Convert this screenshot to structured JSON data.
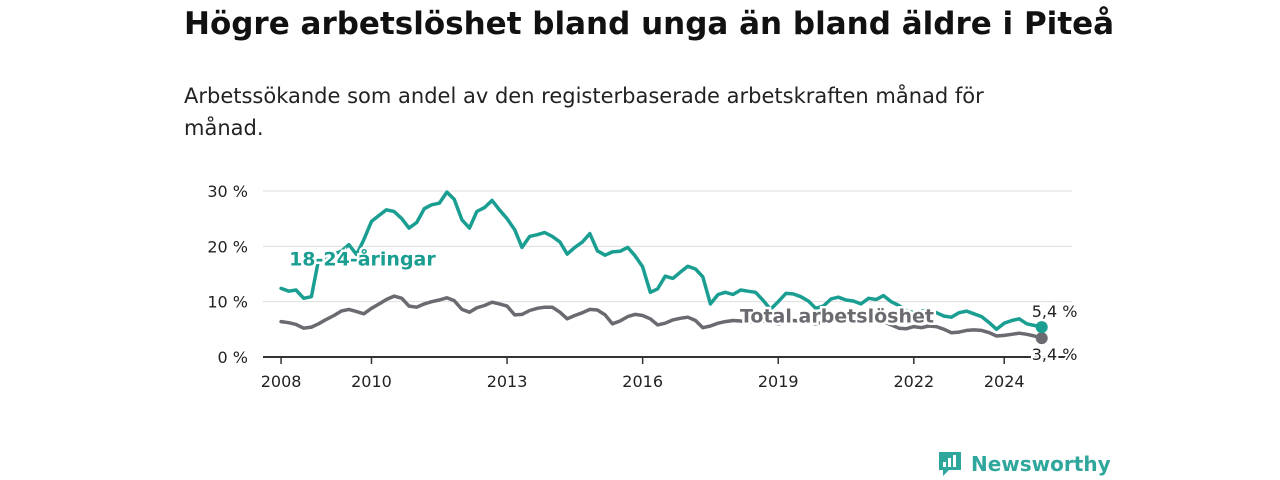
{
  "title": "Högre arbetslöshet bland unga än bland äldre i Piteå",
  "subtitle": "Arbetssökande som andel av den registerbaserade arbetskraften månad för månad.",
  "brand": {
    "name": "Newsworthy",
    "icon": "newsworthy-logo-icon"
  },
  "colors": {
    "youth": "#1a9e92",
    "total": "#6a6a70",
    "grid": "#dddddd",
    "axis": "#333333"
  },
  "chart_data": {
    "type": "line",
    "title": "Högre arbetslöshet bland unga än bland äldre i Piteå",
    "xlabel": "",
    "ylabel": "",
    "xlim": [
      2007.6,
      2025.5
    ],
    "ylim": [
      0,
      30
    ],
    "grid": true,
    "x_ticks": [
      {
        "value": 2008,
        "label": "2008"
      },
      {
        "value": 2010,
        "label": "2010"
      },
      {
        "value": 2013,
        "label": "2013"
      },
      {
        "value": 2016,
        "label": "2016"
      },
      {
        "value": 2019,
        "label": "2019"
      },
      {
        "value": 2022,
        "label": "2022"
      },
      {
        "value": 2024,
        "label": "2024"
      }
    ],
    "y_ticks": [
      {
        "value": 0,
        "label": "0 %"
      },
      {
        "value": 10,
        "label": "10 %"
      },
      {
        "value": 20,
        "label": "20 %"
      },
      {
        "value": 30,
        "label": "30 %"
      }
    ],
    "series": [
      {
        "name": "18-24-åringar",
        "key": "youth",
        "end_label": "5,4 %",
        "points": [
          [
            2008.0,
            12.4
          ],
          [
            2008.17,
            11.9
          ],
          [
            2008.33,
            12.1
          ],
          [
            2008.5,
            10.6
          ],
          [
            2008.67,
            10.9
          ],
          [
            2008.83,
            17.6
          ],
          [
            2009.0,
            18.0
          ],
          [
            2009.17,
            18.6
          ],
          [
            2009.33,
            19.1
          ],
          [
            2009.5,
            20.3
          ],
          [
            2009.67,
            18.5
          ],
          [
            2009.83,
            21.2
          ],
          [
            2010.0,
            24.5
          ],
          [
            2010.17,
            25.6
          ],
          [
            2010.33,
            26.6
          ],
          [
            2010.5,
            26.3
          ],
          [
            2010.67,
            25.0
          ],
          [
            2010.83,
            23.3
          ],
          [
            2011.0,
            24.3
          ],
          [
            2011.17,
            26.8
          ],
          [
            2011.33,
            27.5
          ],
          [
            2011.5,
            27.8
          ],
          [
            2011.67,
            29.8
          ],
          [
            2011.83,
            28.5
          ],
          [
            2012.0,
            24.8
          ],
          [
            2012.17,
            23.3
          ],
          [
            2012.33,
            26.3
          ],
          [
            2012.5,
            27.0
          ],
          [
            2012.67,
            28.3
          ],
          [
            2012.83,
            26.6
          ],
          [
            2013.0,
            25.0
          ],
          [
            2013.17,
            23.0
          ],
          [
            2013.33,
            19.8
          ],
          [
            2013.5,
            21.8
          ],
          [
            2013.67,
            22.1
          ],
          [
            2013.83,
            22.5
          ],
          [
            2014.0,
            21.8
          ],
          [
            2014.17,
            20.8
          ],
          [
            2014.33,
            18.6
          ],
          [
            2014.5,
            19.8
          ],
          [
            2014.67,
            20.8
          ],
          [
            2014.83,
            22.3
          ],
          [
            2015.0,
            19.2
          ],
          [
            2015.17,
            18.4
          ],
          [
            2015.33,
            19.0
          ],
          [
            2015.5,
            19.1
          ],
          [
            2015.67,
            19.8
          ],
          [
            2015.83,
            18.3
          ],
          [
            2016.0,
            16.3
          ],
          [
            2016.17,
            11.7
          ],
          [
            2016.33,
            12.3
          ],
          [
            2016.5,
            14.6
          ],
          [
            2016.67,
            14.2
          ],
          [
            2016.83,
            15.3
          ],
          [
            2017.0,
            16.4
          ],
          [
            2017.17,
            15.9
          ],
          [
            2017.33,
            14.5
          ],
          [
            2017.5,
            9.6
          ],
          [
            2017.67,
            11.3
          ],
          [
            2017.83,
            11.7
          ],
          [
            2018.0,
            11.3
          ],
          [
            2018.17,
            12.1
          ],
          [
            2018.33,
            11.9
          ],
          [
            2018.5,
            11.7
          ],
          [
            2018.67,
            10.2
          ],
          [
            2018.83,
            8.6
          ],
          [
            2019.0,
            10.0
          ],
          [
            2019.17,
            11.5
          ],
          [
            2019.33,
            11.4
          ],
          [
            2019.5,
            10.9
          ],
          [
            2019.67,
            10.1
          ],
          [
            2019.83,
            8.8
          ],
          [
            2020.0,
            9.2
          ],
          [
            2020.17,
            10.5
          ],
          [
            2020.33,
            10.8
          ],
          [
            2020.5,
            10.3
          ],
          [
            2020.67,
            10.1
          ],
          [
            2020.83,
            9.6
          ],
          [
            2021.0,
            10.6
          ],
          [
            2021.17,
            10.4
          ],
          [
            2021.33,
            11.1
          ],
          [
            2021.5,
            10.0
          ],
          [
            2021.67,
            9.3
          ],
          [
            2021.83,
            8.4
          ],
          [
            2022.0,
            8.0
          ],
          [
            2022.17,
            8.3
          ],
          [
            2022.33,
            8.6
          ],
          [
            2022.5,
            8.0
          ],
          [
            2022.67,
            7.4
          ],
          [
            2022.83,
            7.2
          ],
          [
            2023.0,
            8.0
          ],
          [
            2023.17,
            8.3
          ],
          [
            2023.33,
            7.8
          ],
          [
            2023.5,
            7.3
          ],
          [
            2023.67,
            6.2
          ],
          [
            2023.83,
            5.0
          ],
          [
            2024.0,
            6.1
          ],
          [
            2024.17,
            6.6
          ],
          [
            2024.33,
            6.9
          ],
          [
            2024.5,
            6.0
          ],
          [
            2024.67,
            5.7
          ],
          [
            2024.83,
            5.4
          ]
        ]
      },
      {
        "name": "Total arbetslöshet",
        "key": "total",
        "end_label": "3,4 %",
        "points": [
          [
            2008.0,
            6.4
          ],
          [
            2008.17,
            6.2
          ],
          [
            2008.33,
            5.9
          ],
          [
            2008.5,
            5.2
          ],
          [
            2008.67,
            5.4
          ],
          [
            2008.83,
            6.0
          ],
          [
            2009.0,
            6.8
          ],
          [
            2009.17,
            7.5
          ],
          [
            2009.33,
            8.3
          ],
          [
            2009.5,
            8.6
          ],
          [
            2009.67,
            8.2
          ],
          [
            2009.83,
            7.8
          ],
          [
            2010.0,
            8.8
          ],
          [
            2010.17,
            9.6
          ],
          [
            2010.33,
            10.4
          ],
          [
            2010.5,
            11.0
          ],
          [
            2010.67,
            10.6
          ],
          [
            2010.83,
            9.2
          ],
          [
            2011.0,
            9.0
          ],
          [
            2011.17,
            9.6
          ],
          [
            2011.33,
            10.0
          ],
          [
            2011.5,
            10.3
          ],
          [
            2011.67,
            10.7
          ],
          [
            2011.83,
            10.2
          ],
          [
            2012.0,
            8.6
          ],
          [
            2012.17,
            8.1
          ],
          [
            2012.33,
            8.9
          ],
          [
            2012.5,
            9.3
          ],
          [
            2012.67,
            9.9
          ],
          [
            2012.83,
            9.6
          ],
          [
            2013.0,
            9.2
          ],
          [
            2013.17,
            7.6
          ],
          [
            2013.33,
            7.7
          ],
          [
            2013.5,
            8.4
          ],
          [
            2013.67,
            8.8
          ],
          [
            2013.83,
            9.0
          ],
          [
            2014.0,
            9.0
          ],
          [
            2014.17,
            8.1
          ],
          [
            2014.33,
            6.9
          ],
          [
            2014.5,
            7.5
          ],
          [
            2014.67,
            8.0
          ],
          [
            2014.83,
            8.6
          ],
          [
            2015.0,
            8.5
          ],
          [
            2015.17,
            7.6
          ],
          [
            2015.33,
            6.0
          ],
          [
            2015.5,
            6.5
          ],
          [
            2015.67,
            7.3
          ],
          [
            2015.83,
            7.7
          ],
          [
            2016.0,
            7.5
          ],
          [
            2016.17,
            6.9
          ],
          [
            2016.33,
            5.8
          ],
          [
            2016.5,
            6.1
          ],
          [
            2016.67,
            6.7
          ],
          [
            2016.83,
            7.0
          ],
          [
            2017.0,
            7.2
          ],
          [
            2017.17,
            6.6
          ],
          [
            2017.33,
            5.3
          ],
          [
            2017.5,
            5.6
          ],
          [
            2017.67,
            6.1
          ],
          [
            2017.83,
            6.4
          ],
          [
            2018.0,
            6.6
          ],
          [
            2018.17,
            6.5
          ],
          [
            2018.33,
            6.3
          ],
          [
            2018.5,
            6.4
          ],
          [
            2018.67,
            6.5
          ],
          [
            2018.83,
            6.2
          ],
          [
            2019.0,
            6.0
          ],
          [
            2019.17,
            6.2
          ],
          [
            2019.33,
            6.6
          ],
          [
            2019.5,
            6.5
          ],
          [
            2019.67,
            6.2
          ],
          [
            2019.83,
            6.0
          ],
          [
            2020.0,
            6.3
          ],
          [
            2020.17,
            6.8
          ],
          [
            2020.33,
            7.2
          ],
          [
            2020.5,
            7.0
          ],
          [
            2020.67,
            6.6
          ],
          [
            2020.83,
            6.4
          ],
          [
            2021.0,
            6.8
          ],
          [
            2021.17,
            6.9
          ],
          [
            2021.33,
            6.4
          ],
          [
            2021.5,
            5.8
          ],
          [
            2021.67,
            5.2
          ],
          [
            2021.83,
            5.1
          ],
          [
            2022.0,
            5.5
          ],
          [
            2022.17,
            5.3
          ],
          [
            2022.33,
            5.6
          ],
          [
            2022.5,
            5.5
          ],
          [
            2022.67,
            5.0
          ],
          [
            2022.83,
            4.4
          ],
          [
            2023.0,
            4.5
          ],
          [
            2023.17,
            4.8
          ],
          [
            2023.33,
            4.9
          ],
          [
            2023.5,
            4.8
          ],
          [
            2023.67,
            4.4
          ],
          [
            2023.83,
            3.8
          ],
          [
            2024.0,
            3.9
          ],
          [
            2024.17,
            4.1
          ],
          [
            2024.33,
            4.3
          ],
          [
            2024.5,
            4.1
          ],
          [
            2024.67,
            3.8
          ],
          [
            2024.83,
            3.4
          ]
        ]
      }
    ]
  }
}
